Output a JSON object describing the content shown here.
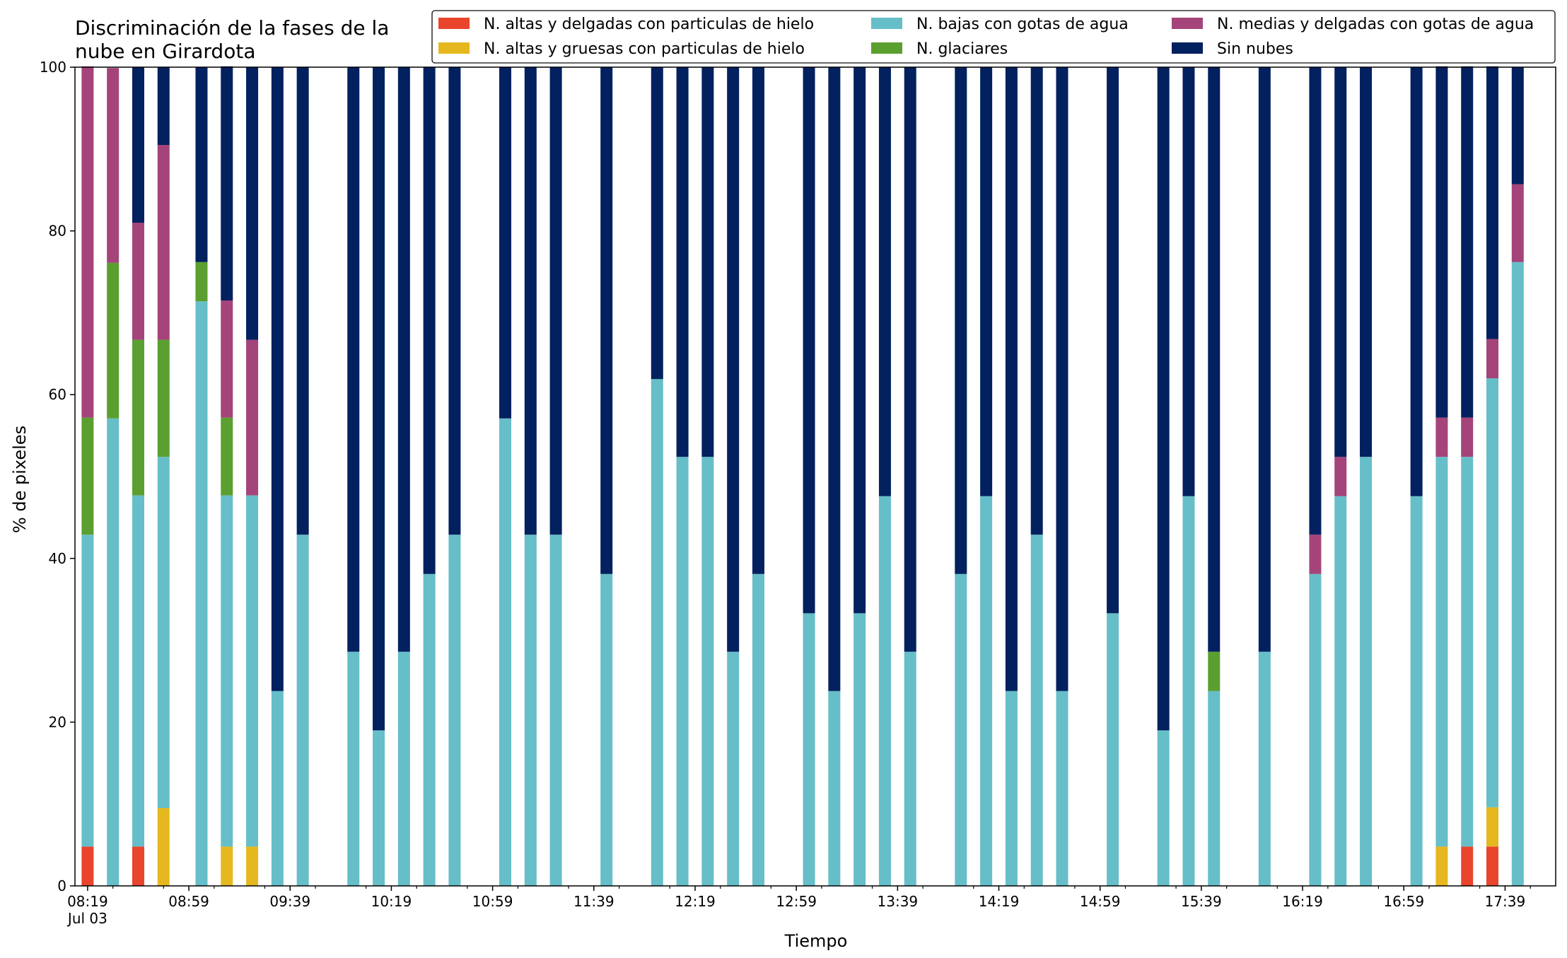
{
  "chart_data": {
    "type": "bar",
    "stacked": true,
    "title": "Discriminación de la fases de la nube en Girardota",
    "xlabel": "Tiempo",
    "ylabel": "% de pixeles",
    "ylim": [
      0,
      100
    ],
    "yticks": [
      0,
      20,
      40,
      60,
      80,
      100
    ],
    "grid": false,
    "legend_position": "top-right",
    "x_date_label": "Jul 03",
    "x_ticklabels": [
      "08:19",
      "08:59",
      "09:39",
      "10:19",
      "10:59",
      "11:39",
      "12:19",
      "12:59",
      "13:39",
      "14:19",
      "14:59",
      "15:39",
      "16:19",
      "16:59",
      "17:39"
    ],
    "x": [
      "08:19",
      "08:29",
      "08:39",
      "08:49",
      "09:04",
      "09:14",
      "09:24",
      "09:34",
      "09:44",
      "10:04",
      "10:14",
      "10:24",
      "10:34",
      "10:44",
      "11:04",
      "11:14",
      "11:24",
      "11:44",
      "12:04",
      "12:14",
      "12:24",
      "12:34",
      "12:44",
      "13:04",
      "13:14",
      "13:24",
      "13:34",
      "13:44",
      "14:04",
      "14:14",
      "14:24",
      "14:34",
      "14:44",
      "15:04",
      "15:24",
      "15:34",
      "15:44",
      "16:04",
      "16:24",
      "16:34",
      "16:44",
      "17:04",
      "17:14",
      "17:24",
      "17:34",
      "17:44"
    ],
    "series": [
      {
        "name": "N. altas y delgadas con particulas de hielo",
        "color": "#e8452c",
        "values": [
          4.8,
          0,
          4.8,
          0,
          0,
          0,
          0,
          0,
          0,
          0,
          0,
          0,
          0,
          0,
          0,
          0,
          0,
          0,
          0,
          0,
          0,
          0,
          0,
          0,
          0,
          0,
          0,
          0,
          0,
          0,
          0,
          0,
          0,
          0,
          0,
          0,
          0,
          0,
          0,
          0,
          0,
          0,
          0,
          4.8,
          4.8,
          0
        ]
      },
      {
        "name": "N. altas y gruesas con particulas de hielo",
        "color": "#e6b81f",
        "values": [
          0,
          0,
          0,
          9.5,
          0,
          4.8,
          4.8,
          0,
          0,
          0,
          0,
          0,
          0,
          0,
          0,
          0,
          0,
          0,
          0,
          0,
          0,
          0,
          0,
          0,
          0,
          0,
          0,
          0,
          0,
          0,
          0,
          0,
          0,
          0,
          0,
          0,
          0,
          0,
          0,
          0,
          0,
          0,
          4.8,
          0,
          4.8,
          0
        ]
      },
      {
        "name": "N. bajas con gotas de agua",
        "color": "#66bec8",
        "values": [
          38.1,
          57.1,
          42.9,
          42.9,
          71.4,
          42.9,
          42.9,
          23.8,
          42.9,
          28.6,
          19.0,
          28.6,
          38.1,
          42.9,
          57.1,
          42.9,
          42.9,
          38.1,
          61.9,
          52.4,
          52.4,
          28.6,
          38.1,
          33.3,
          23.8,
          33.3,
          47.6,
          28.6,
          38.1,
          47.6,
          23.8,
          42.9,
          23.8,
          33.3,
          19.0,
          47.6,
          23.8,
          28.6,
          38.1,
          47.6,
          52.4,
          47.6,
          47.6,
          47.6,
          52.4,
          76.2
        ]
      },
      {
        "name": "N. glaciares",
        "color": "#5a9f2f",
        "values": [
          14.3,
          19.0,
          19.0,
          14.3,
          4.8,
          9.5,
          0,
          0,
          0,
          0,
          0,
          0,
          0,
          0,
          0,
          0,
          0,
          0,
          0,
          0,
          0,
          0,
          0,
          0,
          0,
          0,
          0,
          0,
          0,
          0,
          0,
          0,
          0,
          0,
          0,
          0,
          4.8,
          0,
          0,
          0,
          0,
          0,
          0,
          0,
          0,
          0
        ]
      },
      {
        "name": "N. medias y delgadas con gotas de agua",
        "color": "#a4447a",
        "values": [
          42.9,
          23.8,
          14.3,
          23.8,
          0,
          14.3,
          19.0,
          0,
          0,
          0,
          0,
          0,
          0,
          0,
          0,
          0,
          0,
          0,
          0,
          0,
          0,
          0,
          0,
          0,
          0,
          0,
          0,
          0,
          0,
          0,
          0,
          0,
          0,
          0,
          0,
          0,
          0,
          0,
          4.8,
          4.8,
          0,
          0,
          4.8,
          4.8,
          4.8,
          9.5
        ]
      },
      {
        "name": "Sin nubes",
        "color": "#03205f",
        "values": [
          0,
          0,
          19.0,
          9.5,
          23.8,
          28.6,
          33.3,
          76.2,
          57.1,
          71.4,
          81.0,
          71.4,
          61.9,
          57.1,
          42.9,
          57.1,
          57.1,
          61.9,
          38.1,
          47.6,
          47.6,
          71.4,
          61.9,
          66.7,
          76.2,
          66.7,
          52.4,
          71.4,
          61.9,
          52.4,
          76.2,
          57.1,
          76.2,
          66.7,
          81.0,
          52.4,
          71.4,
          71.4,
          57.1,
          47.6,
          47.6,
          52.4,
          42.9,
          42.9,
          33.3,
          14.3
        ]
      }
    ],
    "legend_order": [
      0,
      1,
      2,
      3,
      4,
      5
    ]
  }
}
